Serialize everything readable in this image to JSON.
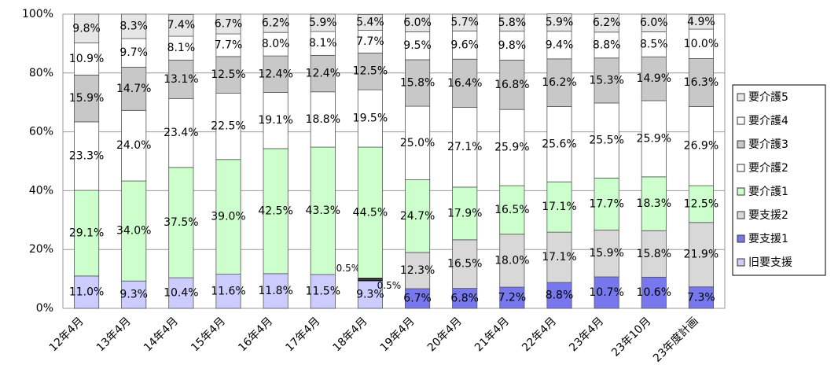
{
  "chart_data": {
    "type": "stacked_bar",
    "categories": [
      "12年4月",
      "13年4月",
      "14年4月",
      "15年4月",
      "16年4月",
      "17年4月",
      "18年4月",
      "19年4月",
      "20年4月",
      "21年4月",
      "22年4月",
      "23年4月",
      "23年10月",
      "23年度計画"
    ],
    "ylim": [
      0,
      100
    ],
    "yticks": [
      {
        "value": 0,
        "label": "0%"
      },
      {
        "value": 20,
        "label": "20%"
      },
      {
        "value": 40,
        "label": "40%"
      },
      {
        "value": 60,
        "label": "60%"
      },
      {
        "value": 80,
        "label": "80%"
      },
      {
        "value": 100,
        "label": "100%"
      }
    ],
    "grid": true,
    "legend": "right",
    "series": [
      {
        "name": "旧要支援",
        "color": "#ccccff",
        "values": [
          11.0,
          9.3,
          10.4,
          11.6,
          11.8,
          11.5,
          9.3,
          null,
          null,
          null,
          null,
          null,
          null,
          null
        ],
        "value_labels": [
          "11.0%",
          "9.3%",
          "10.4%",
          "11.6%",
          "11.8%",
          "11.5%",
          "9.3%",
          null,
          null,
          null,
          null,
          null,
          null,
          null
        ]
      },
      {
        "name": "要支援1",
        "color": "#7777ee",
        "values": [
          null,
          null,
          null,
          null,
          null,
          null,
          0.5,
          6.7,
          6.8,
          7.2,
          8.8,
          10.7,
          10.6,
          7.3
        ],
        "value_labels": [
          null,
          null,
          null,
          null,
          null,
          null,
          "0.5%",
          "6.7%",
          "6.8%",
          "7.2%",
          "8.8%",
          "10.7%",
          "10.6%",
          "7.3%"
        ]
      },
      {
        "name": "要支援2",
        "color": "#d8d8d8",
        "values": [
          null,
          null,
          null,
          null,
          null,
          null,
          0.5,
          12.3,
          16.5,
          18.0,
          17.1,
          15.9,
          15.8,
          21.9
        ],
        "value_labels": [
          null,
          null,
          null,
          null,
          null,
          null,
          "0.5%",
          "12.3%",
          "16.5%",
          "18.0%",
          "17.1%",
          "15.9%",
          "15.8%",
          "21.9%"
        ]
      },
      {
        "name": "要介護1",
        "color": "#ccffcc",
        "values": [
          29.1,
          34.0,
          37.5,
          39.0,
          42.5,
          43.3,
          44.5,
          24.7,
          17.9,
          16.5,
          17.1,
          17.7,
          18.3,
          12.5
        ],
        "value_labels": [
          "29.1%",
          "34.0%",
          "37.5%",
          "39.0%",
          "42.5%",
          "43.3%",
          "44.5%",
          "24.7%",
          "17.9%",
          "16.5%",
          "17.1%",
          "17.7%",
          "18.3%",
          "12.5%"
        ]
      },
      {
        "name": "要介護2",
        "color": "#ffffff",
        "values": [
          23.3,
          24.0,
          23.4,
          22.5,
          19.1,
          18.8,
          19.5,
          25.0,
          27.1,
          25.9,
          25.6,
          25.5,
          25.9,
          26.9
        ],
        "value_labels": [
          "23.3%",
          "24.0%",
          "23.4%",
          "22.5%",
          "19.1%",
          "18.8%",
          "19.5%",
          "25.0%",
          "27.1%",
          "25.9%",
          "25.6%",
          "25.5%",
          "25.9%",
          "26.9%"
        ]
      },
      {
        "name": "要介護3",
        "color": "#c8c8c8",
        "values": [
          15.9,
          14.7,
          13.1,
          12.5,
          12.4,
          12.4,
          12.5,
          15.8,
          16.4,
          16.8,
          16.2,
          15.3,
          14.9,
          16.3
        ],
        "value_labels": [
          "15.9%",
          "14.7%",
          "13.1%",
          "12.5%",
          "12.4%",
          "12.4%",
          "12.5%",
          "15.8%",
          "16.4%",
          "16.8%",
          "16.2%",
          "15.3%",
          "14.9%",
          "16.3%"
        ]
      },
      {
        "name": "要介護4",
        "color": "#ffffff",
        "values": [
          10.9,
          9.7,
          8.1,
          7.7,
          8.0,
          8.1,
          7.7,
          9.5,
          9.6,
          9.8,
          9.4,
          8.8,
          8.5,
          10.0
        ],
        "value_labels": [
          "10.9%",
          "9.7%",
          "8.1%",
          "7.7%",
          "8.0%",
          "8.1%",
          "7.7%",
          "9.5%",
          "9.6%",
          "9.8%",
          "9.4%",
          "8.8%",
          "8.5%",
          "10.0%"
        ]
      },
      {
        "name": "要介護5",
        "color": "#e6e6e6",
        "values": [
          9.8,
          8.3,
          7.4,
          6.7,
          6.2,
          5.9,
          5.4,
          6.0,
          5.7,
          5.8,
          5.9,
          6.2,
          6.0,
          4.9
        ],
        "value_labels": [
          "9.8%",
          "8.3%",
          "7.4%",
          "6.7%",
          "6.2%",
          "5.9%",
          "5.4%",
          "6.0%",
          "5.7%",
          "5.8%",
          "5.9%",
          "6.2%",
          "6.0%",
          "4.9%"
        ]
      }
    ]
  }
}
